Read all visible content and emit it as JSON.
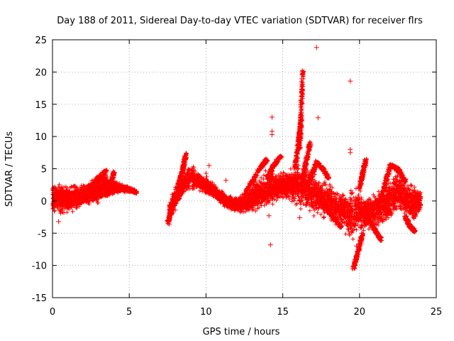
{
  "chart_data": {
    "type": "scatter",
    "title": "Day 188 of 2011, Sidereal Day-to-day VTEC variation (SDTVAR) for receiver flrs",
    "xlabel": "GPS time / hours",
    "ylabel": "SDTVAR / TECUs",
    "xlim": [
      0,
      25
    ],
    "ylim": [
      -15,
      25
    ],
    "xticks": [
      0,
      5,
      10,
      15,
      20,
      25
    ],
    "yticks": [
      -15,
      -10,
      -5,
      0,
      5,
      10,
      15,
      20,
      25
    ],
    "grid": true,
    "marker": "+",
    "series_color": "#ff0000",
    "trend": [
      {
        "x": 0.0,
        "y": 0.5,
        "spread": 2.2
      },
      {
        "x": 0.5,
        "y": 0.3,
        "spread": 2.2
      },
      {
        "x": 1.0,
        "y": 0.2,
        "spread": 2.0
      },
      {
        "x": 1.5,
        "y": 0.5,
        "spread": 1.8
      },
      {
        "x": 2.0,
        "y": 0.8,
        "spread": 1.6
      },
      {
        "x": 2.5,
        "y": 1.2,
        "spread": 1.6
      },
      {
        "x": 3.0,
        "y": 1.8,
        "spread": 1.8
      },
      {
        "x": 3.5,
        "y": 2.3,
        "spread": 1.8
      },
      {
        "x": 4.0,
        "y": 2.2,
        "spread": 1.0
      },
      {
        "x": 4.5,
        "y": 2.0,
        "spread": 0.5
      },
      {
        "x": 5.0,
        "y": 1.8,
        "spread": 0.4
      },
      {
        "x": 5.5,
        "y": 1.3,
        "spread": 0.3
      },
      {
        "x": 7.6,
        "y": -1.5,
        "spread": 1.2
      },
      {
        "x": 8.0,
        "y": 0.5,
        "spread": 1.5
      },
      {
        "x": 8.5,
        "y": 2.5,
        "spread": 1.8
      },
      {
        "x": 9.0,
        "y": 3.8,
        "spread": 1.8
      },
      {
        "x": 9.5,
        "y": 3.0,
        "spread": 1.2
      },
      {
        "x": 10.0,
        "y": 2.3,
        "spread": 1.2
      },
      {
        "x": 10.5,
        "y": 1.5,
        "spread": 1.0
      },
      {
        "x": 11.0,
        "y": 0.5,
        "spread": 1.0
      },
      {
        "x": 11.5,
        "y": -0.2,
        "spread": 1.0
      },
      {
        "x": 12.0,
        "y": -0.7,
        "spread": 1.0
      },
      {
        "x": 12.5,
        "y": -0.3,
        "spread": 1.5
      },
      {
        "x": 13.0,
        "y": 0.5,
        "spread": 1.8
      },
      {
        "x": 13.5,
        "y": 1.2,
        "spread": 2.0
      },
      {
        "x": 14.0,
        "y": 2.0,
        "spread": 2.5
      },
      {
        "x": 14.5,
        "y": 2.2,
        "spread": 2.0
      },
      {
        "x": 15.0,
        "y": 2.5,
        "spread": 1.8
      },
      {
        "x": 15.5,
        "y": 2.3,
        "spread": 2.0
      },
      {
        "x": 16.0,
        "y": 2.5,
        "spread": 3.0
      },
      {
        "x": 16.5,
        "y": 1.8,
        "spread": 3.0
      },
      {
        "x": 17.0,
        "y": 1.2,
        "spread": 2.8
      },
      {
        "x": 17.5,
        "y": 0.5,
        "spread": 2.5
      },
      {
        "x": 18.0,
        "y": 0.0,
        "spread": 2.5
      },
      {
        "x": 18.5,
        "y": -0.8,
        "spread": 2.5
      },
      {
        "x": 19.0,
        "y": -1.5,
        "spread": 2.5
      },
      {
        "x": 19.5,
        "y": -2.5,
        "spread": 3.5
      },
      {
        "x": 20.0,
        "y": -1.5,
        "spread": 3.0
      },
      {
        "x": 20.5,
        "y": -1.8,
        "spread": 2.5
      },
      {
        "x": 21.0,
        "y": -1.5,
        "spread": 2.5
      },
      {
        "x": 21.5,
        "y": -1.0,
        "spread": 2.5
      },
      {
        "x": 22.0,
        "y": 0.5,
        "spread": 3.0
      },
      {
        "x": 22.5,
        "y": 1.5,
        "spread": 3.0
      },
      {
        "x": 23.0,
        "y": 0.5,
        "spread": 2.5
      },
      {
        "x": 23.5,
        "y": -0.5,
        "spread": 2.5
      },
      {
        "x": 24.0,
        "y": 0.0,
        "spread": 1.5
      }
    ],
    "branches": [
      {
        "x": [
          2.5,
          3.0,
          3.5
        ],
        "y": [
          2.0,
          3.5,
          4.7
        ]
      },
      {
        "x": [
          3.5,
          3.8,
          4.0
        ],
        "y": [
          1.0,
          2.5,
          4.5
        ]
      },
      {
        "x": [
          8.2,
          8.5,
          8.7
        ],
        "y": [
          2.5,
          5.0,
          7.3
        ]
      },
      {
        "x": [
          12.5,
          13.0,
          13.5,
          14.0
        ],
        "y": [
          1.0,
          3.0,
          5.0,
          6.5
        ]
      },
      {
        "x": [
          14.0,
          14.4,
          14.9
        ],
        "y": [
          3.5,
          5.5,
          7.0
        ]
      },
      {
        "x": [
          15.8,
          16.0,
          16.2
        ],
        "y": [
          5.0,
          8.5,
          12.5
        ]
      },
      {
        "x": [
          16.1,
          16.2,
          16.3
        ],
        "y": [
          8.0,
          14.0,
          20.3
        ]
      },
      {
        "x": [
          16.3,
          16.5,
          16.8
        ],
        "y": [
          3.0,
          6.0,
          9.0
        ]
      },
      {
        "x": [
          16.8,
          17.2,
          17.6,
          18.0
        ],
        "y": [
          3.5,
          6.0,
          5.0,
          3.5
        ]
      },
      {
        "x": [
          17.8,
          18.3,
          18.8
        ],
        "y": [
          -1.0,
          -2.5,
          -4.0
        ]
      },
      {
        "x": [
          19.6,
          19.9,
          20.2
        ],
        "y": [
          -10.5,
          -8.0,
          -5.0
        ]
      },
      {
        "x": [
          20.0,
          20.2,
          20.4
        ],
        "y": [
          2.0,
          4.0,
          6.3
        ]
      },
      {
        "x": [
          20.5,
          21.0,
          21.4
        ],
        "y": [
          -2.5,
          -4.5,
          -6.0
        ]
      },
      {
        "x": [
          21.2,
          21.6,
          22.0
        ],
        "y": [
          -1.0,
          2.0,
          5.5
        ]
      },
      {
        "x": [
          22.0,
          22.5,
          23.0
        ],
        "y": [
          5.5,
          5.0,
          3.0
        ]
      },
      {
        "x": [
          23.0,
          23.3,
          23.6
        ],
        "y": [
          -2.5,
          -4.0,
          -4.7
        ]
      },
      {
        "x": [
          7.5,
          7.8,
          8.2
        ],
        "y": [
          -3.5,
          -1.0,
          1.0
        ]
      }
    ],
    "outliers": [
      {
        "x": 14.3,
        "y": 13.0
      },
      {
        "x": 14.3,
        "y": 10.8
      },
      {
        "x": 14.3,
        "y": 10.3
      },
      {
        "x": 14.1,
        "y": -2.3
      },
      {
        "x": 14.2,
        "y": -6.8
      },
      {
        "x": 17.2,
        "y": 23.8
      },
      {
        "x": 17.3,
        "y": 12.9
      },
      {
        "x": 19.4,
        "y": 18.6
      },
      {
        "x": 19.4,
        "y": 8.0
      },
      {
        "x": 19.4,
        "y": 7.5
      },
      {
        "x": 10.2,
        "y": 5.5
      },
      {
        "x": 10.0,
        "y": 4.3
      },
      {
        "x": 11.3,
        "y": 3.2
      },
      {
        "x": 16.1,
        "y": -2.6
      },
      {
        "x": 7.6,
        "y": -3.6
      },
      {
        "x": 0.4,
        "y": -3.2
      },
      {
        "x": 8.0,
        "y": -1.4
      },
      {
        "x": 17.8,
        "y": 4.2
      },
      {
        "x": 19.8,
        "y": -7.0
      }
    ]
  }
}
